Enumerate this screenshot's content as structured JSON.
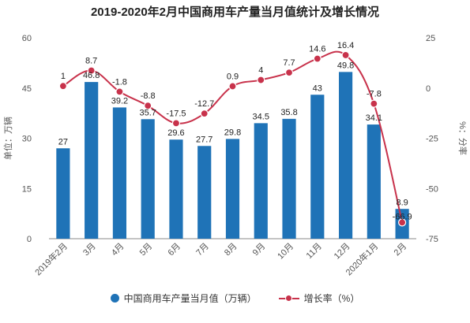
{
  "chart_data": {
    "type": "bar+line",
    "title": "2019-2020年2月中国商用车产量当月值统计及增长情况",
    "categories": [
      "2019年2月",
      "3月",
      "4月",
      "5月",
      "6月",
      "7月",
      "8月",
      "9月",
      "10月",
      "11月",
      "12月",
      "2020年1月",
      "2月"
    ],
    "series": [
      {
        "name": "中国商用车产量当月值（万辆）",
        "type": "bar",
        "axis": "left",
        "values": [
          27,
          46.8,
          39.2,
          35.7,
          29.6,
          27.7,
          29.8,
          34.5,
          35.8,
          43,
          49.8,
          34.1,
          8.9
        ],
        "color": "#1f73b7"
      },
      {
        "name": "增长率（%）",
        "type": "line",
        "axis": "right",
        "values": [
          1,
          8.7,
          -1.8,
          -8.8,
          -17.5,
          -12.7,
          0.9,
          4,
          7.7,
          14.6,
          16.4,
          -7.8,
          -66.9
        ],
        "color": "#c8324b"
      }
    ],
    "ylabel_left": "单位：万辆",
    "ylabel_right": "%：分率",
    "ylim_left": [
      0,
      60
    ],
    "yticks_left": [
      0,
      15,
      30,
      45,
      60
    ],
    "ylim_right": [
      -75,
      25
    ],
    "yticks_right": [
      -75,
      -50,
      -25,
      0,
      25
    ],
    "grid": false,
    "legend_position": "bottom"
  }
}
